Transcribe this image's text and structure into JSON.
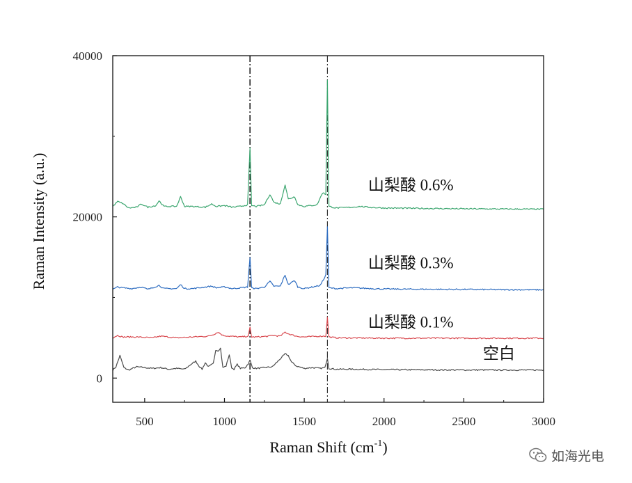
{
  "chart_data": {
    "type": "line",
    "title": "",
    "xlabel": "Raman Shift (cm",
    "xlabel_sup": "-1",
    "xlabel_end": ")",
    "ylabel": "Raman Intensity (a.u.)",
    "xlim": [
      300,
      3000
    ],
    "ylim": [
      -3000,
      40000
    ],
    "x_ticks": [
      500,
      1000,
      1500,
      2000,
      2500,
      3000
    ],
    "x_tick_labels": [
      "500",
      "1000",
      "1500",
      "2000",
      "2500",
      "3000"
    ],
    "y_ticks": [
      0,
      20000,
      40000
    ],
    "y_tick_labels": [
      "0",
      "20000",
      "40000"
    ],
    "grid": false,
    "reference_lines": [
      {
        "x": 1160,
        "style": "dash-dot"
      },
      {
        "x": 1645,
        "style": "dash-dot"
      }
    ],
    "series": [
      {
        "name": "空白",
        "color": "#4a4a4a",
        "baseline": 1000,
        "points": [
          [
            300,
            1000
          ],
          [
            320,
            1400
          ],
          [
            345,
            2800
          ],
          [
            370,
            1300
          ],
          [
            400,
            1000
          ],
          [
            450,
            1400
          ],
          [
            500,
            1300
          ],
          [
            550,
            1200
          ],
          [
            600,
            1300
          ],
          [
            650,
            1100
          ],
          [
            700,
            1200
          ],
          [
            750,
            1100
          ],
          [
            790,
            1700
          ],
          [
            820,
            2100
          ],
          [
            840,
            1500
          ],
          [
            860,
            1100
          ],
          [
            880,
            1900
          ],
          [
            900,
            1400
          ],
          [
            930,
            1800
          ],
          [
            945,
            3500
          ],
          [
            960,
            3400
          ],
          [
            975,
            3700
          ],
          [
            990,
            1300
          ],
          [
            1010,
            1500
          ],
          [
            1030,
            2900
          ],
          [
            1045,
            1300
          ],
          [
            1060,
            1100
          ],
          [
            1080,
            1700
          ],
          [
            1100,
            1200
          ],
          [
            1130,
            1300
          ],
          [
            1150,
            1800
          ],
          [
            1160,
            2200
          ],
          [
            1175,
            1300
          ],
          [
            1200,
            1200
          ],
          [
            1250,
            1300
          ],
          [
            1300,
            1400
          ],
          [
            1350,
            2400
          ],
          [
            1380,
            3000
          ],
          [
            1400,
            2800
          ],
          [
            1420,
            2000
          ],
          [
            1450,
            1500
          ],
          [
            1500,
            1200
          ],
          [
            1550,
            1300
          ],
          [
            1600,
            1200
          ],
          [
            1630,
            1300
          ],
          [
            1645,
            2500
          ],
          [
            1655,
            1200
          ],
          [
            1700,
            1100
          ],
          [
            1800,
            1100
          ],
          [
            2000,
            1050
          ],
          [
            2500,
            1000
          ],
          [
            3000,
            1000
          ]
        ]
      },
      {
        "name": "山梨酸 0.1%",
        "color": "#d94a50",
        "baseline": 5000,
        "points": [
          [
            300,
            5000
          ],
          [
            330,
            5300
          ],
          [
            360,
            5100
          ],
          [
            450,
            5100
          ],
          [
            550,
            5000
          ],
          [
            600,
            5200
          ],
          [
            700,
            5000
          ],
          [
            800,
            5100
          ],
          [
            900,
            5200
          ],
          [
            930,
            5400
          ],
          [
            960,
            5700
          ],
          [
            990,
            5300
          ],
          [
            1030,
            5200
          ],
          [
            1100,
            5100
          ],
          [
            1150,
            5200
          ],
          [
            1160,
            6300
          ],
          [
            1170,
            5100
          ],
          [
            1200,
            5100
          ],
          [
            1280,
            5200
          ],
          [
            1300,
            5300
          ],
          [
            1350,
            5200
          ],
          [
            1380,
            5700
          ],
          [
            1400,
            5500
          ],
          [
            1450,
            5200
          ],
          [
            1500,
            5100
          ],
          [
            1600,
            5200
          ],
          [
            1635,
            5200
          ],
          [
            1645,
            7500
          ],
          [
            1655,
            5100
          ],
          [
            1700,
            5000
          ],
          [
            2000,
            4950
          ],
          [
            2500,
            4950
          ],
          [
            3000,
            4950
          ]
        ]
      },
      {
        "name": "山梨酸 0.3%",
        "color": "#2d6cc0",
        "baseline": 11000,
        "points": [
          [
            300,
            11000
          ],
          [
            330,
            11300
          ],
          [
            360,
            11200
          ],
          [
            420,
            11100
          ],
          [
            480,
            11300
          ],
          [
            520,
            11000
          ],
          [
            590,
            11500
          ],
          [
            620,
            11100
          ],
          [
            700,
            11100
          ],
          [
            725,
            11600
          ],
          [
            750,
            11100
          ],
          [
            800,
            11100
          ],
          [
            920,
            11400
          ],
          [
            950,
            11200
          ],
          [
            1000,
            11300
          ],
          [
            1050,
            11100
          ],
          [
            1100,
            11200
          ],
          [
            1145,
            11300
          ],
          [
            1160,
            15000
          ],
          [
            1170,
            11200
          ],
          [
            1200,
            11100
          ],
          [
            1250,
            11300
          ],
          [
            1285,
            12000
          ],
          [
            1310,
            11400
          ],
          [
            1350,
            11400
          ],
          [
            1380,
            12800
          ],
          [
            1400,
            11600
          ],
          [
            1440,
            12100
          ],
          [
            1460,
            11300
          ],
          [
            1500,
            11100
          ],
          [
            1600,
            11500
          ],
          [
            1620,
            12200
          ],
          [
            1635,
            12800
          ],
          [
            1645,
            18800
          ],
          [
            1655,
            11200
          ],
          [
            1700,
            11100
          ],
          [
            1800,
            11200
          ],
          [
            2000,
            11050
          ],
          [
            2500,
            11000
          ],
          [
            3000,
            10950
          ]
        ]
      },
      {
        "name": "山梨酸 0.6%",
        "color": "#3aa56e",
        "baseline": 21000,
        "points": [
          [
            300,
            21300
          ],
          [
            330,
            21900
          ],
          [
            360,
            21700
          ],
          [
            400,
            21100
          ],
          [
            450,
            21200
          ],
          [
            480,
            21600
          ],
          [
            520,
            21200
          ],
          [
            570,
            21400
          ],
          [
            590,
            22000
          ],
          [
            620,
            21300
          ],
          [
            700,
            21300
          ],
          [
            725,
            22500
          ],
          [
            750,
            21300
          ],
          [
            800,
            21300
          ],
          [
            880,
            21200
          ],
          [
            920,
            21600
          ],
          [
            950,
            21300
          ],
          [
            1000,
            21400
          ],
          [
            1050,
            21200
          ],
          [
            1100,
            21300
          ],
          [
            1145,
            21500
          ],
          [
            1160,
            28500
          ],
          [
            1170,
            21400
          ],
          [
            1200,
            21300
          ],
          [
            1250,
            21500
          ],
          [
            1285,
            22800
          ],
          [
            1310,
            21800
          ],
          [
            1350,
            21600
          ],
          [
            1380,
            24000
          ],
          [
            1400,
            22200
          ],
          [
            1440,
            22500
          ],
          [
            1460,
            21500
          ],
          [
            1500,
            21300
          ],
          [
            1580,
            21500
          ],
          [
            1615,
            23000
          ],
          [
            1635,
            22800
          ],
          [
            1645,
            37000
          ],
          [
            1655,
            21300
          ],
          [
            1700,
            21100
          ],
          [
            1800,
            21200
          ],
          [
            1850,
            21300
          ],
          [
            1900,
            21200
          ],
          [
            2000,
            21100
          ],
          [
            2500,
            21000
          ],
          [
            3000,
            20950
          ]
        ]
      }
    ],
    "annotations": [
      {
        "text": "山梨酸 0.6%",
        "x": 1900,
        "y": 23300
      },
      {
        "text": "山梨酸 0.3%",
        "x": 1900,
        "y": 13600
      },
      {
        "text": "山梨酸 0.1%",
        "x": 1900,
        "y": 6300
      },
      {
        "text": "空白",
        "x": 2620,
        "y": 2400
      }
    ]
  },
  "watermark": {
    "text": "如海光电",
    "icon": "wechat-icon"
  }
}
